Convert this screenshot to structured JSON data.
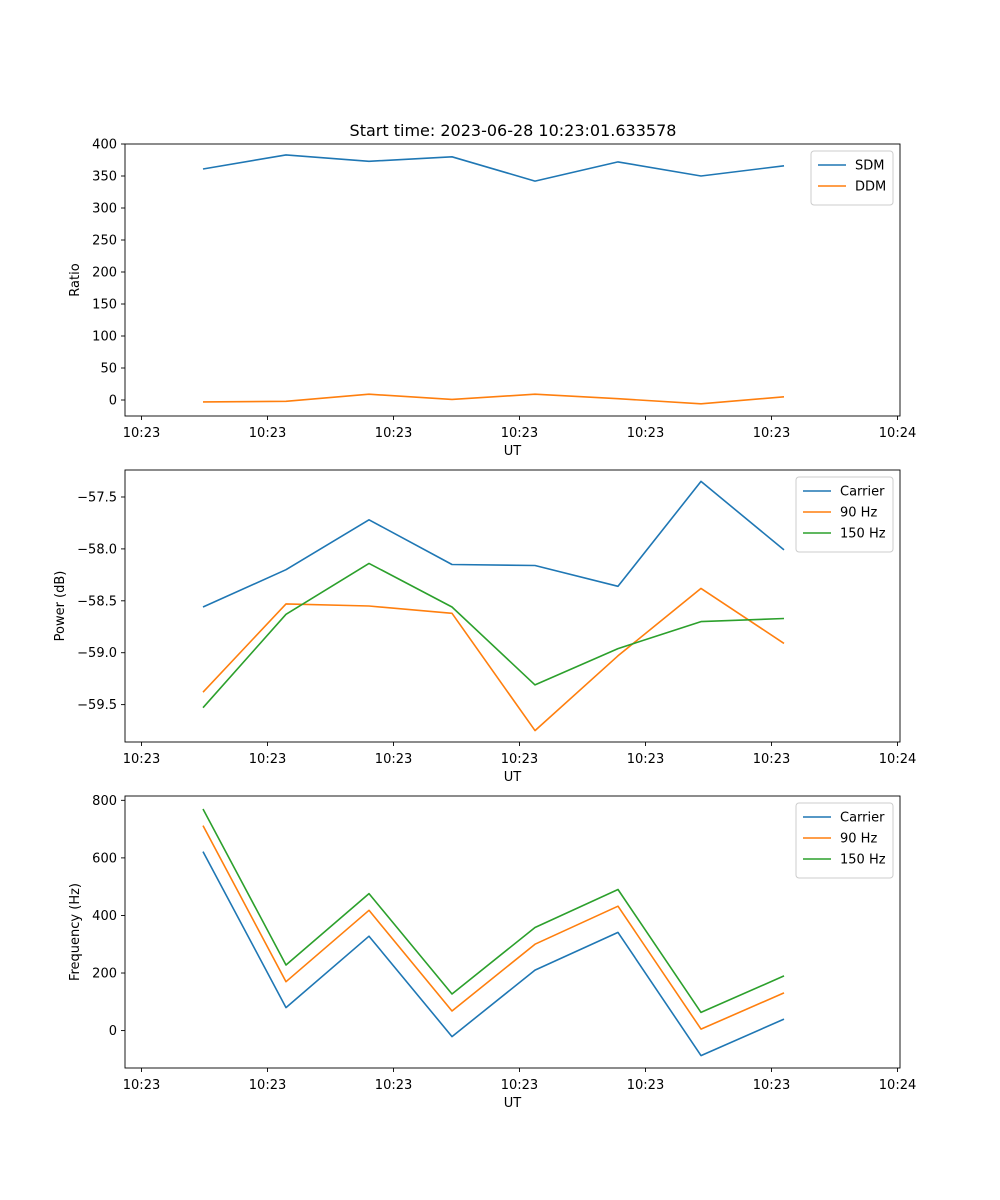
{
  "figure": {
    "title": "Start time: 2023-06-28 10:23:01.633578"
  },
  "chart_data": [
    {
      "type": "line",
      "title": "Start time: 2023-06-28 10:23:01.633578",
      "xlabel": "UT",
      "ylabel": "Ratio",
      "x_tick_labels": [
        "10:23",
        "10:23",
        "10:23",
        "10:23",
        "10:23",
        "10:23",
        "10:24"
      ],
      "ylim": [
        -25,
        400
      ],
      "y_ticks": [
        0,
        50,
        100,
        150,
        200,
        250,
        300,
        350,
        400
      ],
      "y_tick_labels": [
        "0",
        "50",
        "100",
        "150",
        "200",
        "250",
        "300",
        "350",
        "400"
      ],
      "legend_position": "top-right",
      "series": [
        {
          "name": "SDM",
          "color": "#1f77b4",
          "values": [
            361,
            383,
            373,
            380,
            342,
            372,
            350,
            366
          ]
        },
        {
          "name": "DDM",
          "color": "#ff7f0e",
          "values": [
            -3,
            -2,
            9,
            1,
            9,
            2,
            -6,
            5
          ]
        }
      ]
    },
    {
      "type": "line",
      "title": "",
      "xlabel": "UT",
      "ylabel": "Power (dB)",
      "x_tick_labels": [
        "10:23",
        "10:23",
        "10:23",
        "10:23",
        "10:23",
        "10:23",
        "10:24"
      ],
      "ylim": [
        -59.86,
        -57.24
      ],
      "y_ticks": [
        -59.5,
        -59.0,
        -58.5,
        -58.0,
        -57.5
      ],
      "y_tick_labels": [
        "−59.5",
        "−59.0",
        "−58.5",
        "−58.0",
        "−57.5"
      ],
      "legend_position": "top-right",
      "series": [
        {
          "name": "Carrier",
          "color": "#1f77b4",
          "values": [
            -58.56,
            -58.2,
            -57.72,
            -58.15,
            -58.16,
            -58.36,
            -57.35,
            -58.01
          ]
        },
        {
          "name": "90 Hz",
          "color": "#ff7f0e",
          "values": [
            -59.38,
            -58.53,
            -58.55,
            -58.62,
            -59.75,
            -59.03,
            -58.38,
            -58.91
          ]
        },
        {
          "name": "150 Hz",
          "color": "#2ca02c",
          "values": [
            -59.53,
            -58.63,
            -58.14,
            -58.56,
            -59.31,
            -58.96,
            -58.7,
            -58.67
          ]
        }
      ]
    },
    {
      "type": "line",
      "title": "",
      "xlabel": "UT",
      "ylabel": "Frequency (Hz)",
      "x_tick_labels": [
        "10:23",
        "10:23",
        "10:23",
        "10:23",
        "10:23",
        "10:23",
        "10:24"
      ],
      "ylim": [
        -130,
        815
      ],
      "y_ticks": [
        0,
        200,
        400,
        600,
        800
      ],
      "y_tick_labels": [
        "0",
        "200",
        "400",
        "600",
        "800"
      ],
      "legend_position": "top-right",
      "series": [
        {
          "name": "Carrier",
          "color": "#1f77b4",
          "values": [
            622,
            80,
            328,
            -21,
            210,
            341,
            -87,
            40
          ]
        },
        {
          "name": "90 Hz",
          "color": "#ff7f0e",
          "values": [
            712,
            170,
            418,
            68,
            300,
            432,
            5,
            131
          ]
        },
        {
          "name": "150 Hz",
          "color": "#2ca02c",
          "values": [
            770,
            228,
            476,
            127,
            358,
            490,
            63,
            190
          ]
        }
      ]
    }
  ]
}
